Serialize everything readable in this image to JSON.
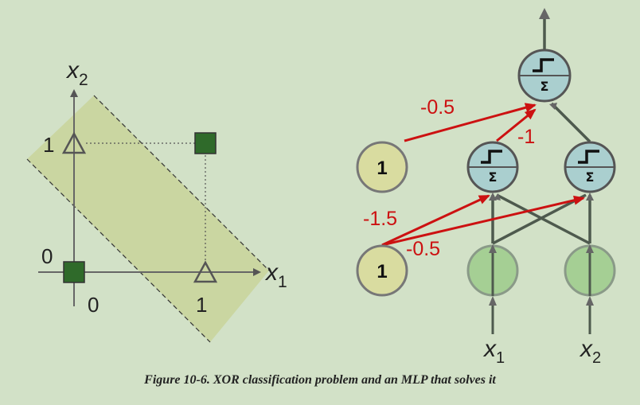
{
  "caption": "Figure 10-6. XOR classification problem and an MLP that solves it",
  "plot": {
    "x_axis_label": "x",
    "x_axis_subscript": "1",
    "y_axis_label": "x",
    "y_axis_subscript": "2",
    "x_ticks": [
      "0",
      "1"
    ],
    "y_ticks": [
      "0",
      "1"
    ],
    "points": [
      {
        "x": 0,
        "y": 0,
        "marker": "square",
        "color": "#2f6a2a"
      },
      {
        "x": 1,
        "y": 1,
        "marker": "square",
        "color": "#2f6a2a"
      },
      {
        "x": 0,
        "y": 1,
        "marker": "triangle"
      },
      {
        "x": 1,
        "y": 0,
        "marker": "triangle"
      }
    ],
    "band_color": "#c9d49a"
  },
  "network": {
    "bias_label": "1",
    "sum_symbol": "Σ",
    "input_labels": [
      {
        "label": "x",
        "sub": "1"
      },
      {
        "label": "x",
        "sub": "2"
      }
    ],
    "weights": {
      "bias_to_output": "-0.5",
      "hidden1_to_output": "-1",
      "bias_to_hidden1": "-1.5",
      "bias_to_hidden2": "-0.5"
    },
    "colors": {
      "red": "#cc1111",
      "gray_line": "#4e5a4e",
      "bias_fill": "#d9dca0",
      "input_fill": "#a5cf94",
      "neuron_fill": "#aacfcf"
    }
  }
}
